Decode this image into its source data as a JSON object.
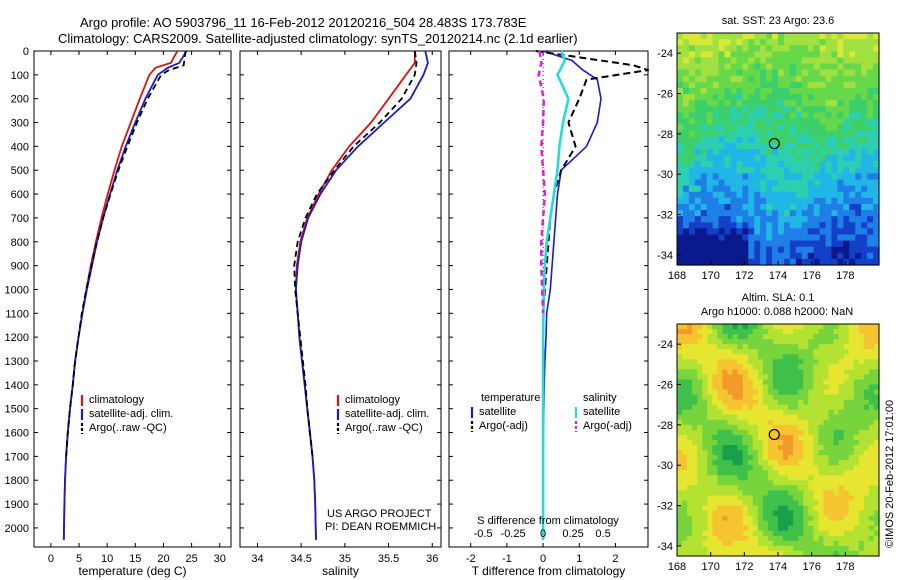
{
  "header": {
    "line1": "Argo profile: AO 5903796_11 16-Feb-2012 20120216_504 28.483S 173.783E",
    "line2": "Climatology: CARS2009. Satellite-adjusted climatology: synTS_20120214.nc (2.1d earlier)"
  },
  "credit": "©IMOS 20-Feb-2012 17:01:00",
  "colors": {
    "climatology": "#dd1111",
    "satellite": "#1a1acc",
    "argo": "#000000",
    "sal_satellite": "#22dddd",
    "sal_argo": "#dd22dd"
  },
  "chart_data": [
    {
      "type": "line",
      "panel": "temperature",
      "xlabel": "temperature (deg C)",
      "ylabel": "",
      "xlim": [
        -3,
        32
      ],
      "ylim": [
        2080,
        0
      ],
      "xticks": [
        "0",
        "5",
        "10",
        "15",
        "20",
        "25",
        "30"
      ],
      "yticks": [
        "0",
        "100",
        "200",
        "300",
        "400",
        "500",
        "600",
        "700",
        "800",
        "900",
        "1000",
        "1100",
        "1200",
        "1300",
        "1400",
        "1500",
        "1600",
        "1700",
        "1800",
        "1900",
        "2000"
      ],
      "legend": [
        "climatology",
        "satellite-adj. clim.",
        "Argo(..raw -QC)"
      ],
      "series": [
        {
          "name": "climatology",
          "x": [
            22.5,
            22.0,
            21.3,
            18.6,
            17.5,
            15.8,
            14.2,
            12.6,
            11.3,
            10.1,
            9.0,
            8.0,
            7.1,
            6.3,
            5.6,
            4.9,
            4.3,
            3.9,
            3.4,
            3.0,
            2.7,
            2.5,
            2.4,
            2.3
          ],
          "y": [
            0,
            20,
            50,
            70,
            100,
            200,
            300,
            400,
            500,
            600,
            700,
            800,
            900,
            1000,
            1100,
            1200,
            1300,
            1400,
            1500,
            1600,
            1700,
            1800,
            1900,
            2050
          ]
        },
        {
          "name": "satellite-adj. clim.",
          "x": [
            24.0,
            23.6,
            22.8,
            20.8,
            19.0,
            16.8,
            15.0,
            13.3,
            11.8,
            10.5,
            9.3,
            8.2,
            7.3,
            6.4,
            5.6,
            4.9,
            4.3,
            3.9,
            3.4,
            3.0,
            2.7,
            2.5,
            2.4,
            2.3
          ],
          "y": [
            0,
            20,
            50,
            70,
            100,
            200,
            300,
            400,
            500,
            600,
            700,
            800,
            900,
            1000,
            1100,
            1200,
            1300,
            1400,
            1500,
            1600,
            1700,
            1800,
            1900,
            2050
          ]
        },
        {
          "name": "Argo(..raw -QC)",
          "x": [
            24.0,
            23.8,
            23.6,
            21.0,
            19.6,
            17.2,
            15.3,
            13.6,
            12.0,
            10.6,
            9.3,
            8.2,
            7.2,
            6.3,
            5.5,
            4.9,
            4.3,
            3.9,
            3.4,
            3.0,
            2.7
          ],
          "y": [
            0,
            20,
            60,
            80,
            100,
            200,
            300,
            400,
            500,
            600,
            700,
            800,
            900,
            1000,
            1100,
            1200,
            1300,
            1400,
            1500,
            1600,
            1700
          ]
        }
      ]
    },
    {
      "type": "line",
      "panel": "salinity",
      "xlabel": "salinity",
      "ylabel": "",
      "xlim": [
        33.8,
        36.1
      ],
      "ylim": [
        2080,
        0
      ],
      "xticks": [
        "34",
        "34.5",
        "35",
        "35.5",
        "36"
      ],
      "legend": [
        "climatology",
        "satellite-adj. clim.",
        "Argo(..raw -QC)"
      ],
      "annotation": [
        "US ARGO PROJECT",
        "PI: DEAN ROEMMICH"
      ],
      "series": [
        {
          "name": "climatology",
          "x": [
            35.8,
            35.8,
            35.7,
            35.5,
            35.3,
            35.05,
            34.85,
            34.7,
            34.57,
            34.49,
            34.45,
            34.44,
            34.46,
            34.48,
            34.51,
            34.54,
            34.57,
            34.6,
            34.63,
            34.65,
            34.66,
            34.67
          ],
          "y": [
            0,
            50,
            100,
            200,
            300,
            400,
            500,
            600,
            700,
            800,
            900,
            1000,
            1100,
            1200,
            1300,
            1400,
            1500,
            1600,
            1700,
            1800,
            1900,
            2050
          ]
        },
        {
          "name": "satellite-adj. clim.",
          "x": [
            35.92,
            35.95,
            35.9,
            35.75,
            35.45,
            35.15,
            34.9,
            34.72,
            34.58,
            34.5,
            34.46,
            34.44,
            34.46,
            34.48,
            34.51,
            34.54,
            34.57,
            34.6,
            34.63,
            34.65,
            34.66,
            34.67
          ],
          "y": [
            0,
            50,
            100,
            200,
            300,
            400,
            500,
            600,
            700,
            800,
            900,
            1000,
            1100,
            1200,
            1300,
            1400,
            1500,
            1600,
            1700,
            1800,
            1900,
            2050
          ]
        },
        {
          "name": "Argo(..raw -QC)",
          "x": [
            35.8,
            35.82,
            35.8,
            35.65,
            35.4,
            35.1,
            34.88,
            34.68,
            34.55,
            34.46,
            34.42,
            34.43,
            34.46,
            34.49,
            34.52,
            34.55,
            34.57,
            34.6,
            34.63
          ],
          "y": [
            0,
            50,
            100,
            200,
            300,
            400,
            500,
            600,
            700,
            800,
            900,
            1000,
            1100,
            1200,
            1300,
            1400,
            1500,
            1600,
            1700
          ]
        }
      ]
    },
    {
      "type": "line",
      "panel": "difference",
      "xlabel": "T difference from climatology",
      "xlabel2": "S difference from climatology",
      "xlim": [
        -2.6,
        2.9
      ],
      "ylim": [
        2080,
        0
      ],
      "xticks": [
        "-2",
        "-1",
        "0",
        "1",
        "2"
      ],
      "xticks2": [
        "-0.5",
        "-0.25",
        "0",
        "0.25",
        "0.5"
      ],
      "legend_headers": [
        "temperature",
        "salinity"
      ],
      "legend": [
        "satellite",
        "Argo(-adj)",
        "satellite",
        "Argo(-adj)"
      ],
      "series": [
        {
          "name": "temperature satellite",
          "x": [
            0.0,
            0.8,
            1.1,
            1.5,
            1.6,
            1.5,
            1.2,
            0.5,
            0.4,
            0.35,
            0.3,
            0.25,
            0.2,
            0.1,
            0.08,
            0.05,
            0.03,
            0.02,
            0.0,
            0.0
          ],
          "y": [
            0,
            40,
            80,
            120,
            200,
            300,
            400,
            500,
            600,
            700,
            800,
            900,
            1000,
            1100,
            1200,
            1300,
            1400,
            1500,
            1700,
            2050
          ]
        },
        {
          "name": "temperature Argo(-adj)",
          "x": [
            -0.2,
            2.5,
            2.9,
            1.2,
            1.0,
            0.7,
            0.9,
            0.5,
            0.3,
            0.2,
            0.15,
            0.1,
            0.05,
            0.0
          ],
          "y": [
            0,
            60,
            80,
            120,
            200,
            300,
            400,
            500,
            600,
            700,
            800,
            900,
            1000,
            1100
          ]
        },
        {
          "name": "salinity satellite",
          "x": [
            0.5,
            0.6,
            0.4,
            0.7,
            0.55,
            0.45,
            0.4,
            0.3,
            0.2,
            0.1,
            0.05,
            0.02,
            0.0,
            0.0
          ],
          "y": [
            0,
            40,
            100,
            200,
            300,
            400,
            500,
            600,
            700,
            800,
            900,
            1000,
            1200,
            2050
          ]
        },
        {
          "name": "salinity Argo(-adj)",
          "x": [
            -0.1,
            -0.05,
            -0.12,
            0.02,
            0.0,
            -0.05,
            0.0,
            0.05,
            0.0,
            -0.05,
            -0.05,
            -0.02,
            0.0
          ],
          "y": [
            0,
            50,
            100,
            200,
            300,
            400,
            500,
            600,
            700,
            800,
            900,
            1000,
            1100
          ]
        }
      ]
    },
    {
      "type": "heatmap",
      "panel": "sst_map",
      "title": "sat. SST: 23 Argo: 23.6",
      "xlim": [
        168,
        180
      ],
      "ylim": [
        -34.5,
        -23
      ],
      "xticks": [
        "168",
        "170",
        "172",
        "174",
        "176",
        "178"
      ],
      "yticks": [
        "-24",
        "-26",
        "-28",
        "-30",
        "-32",
        "-34"
      ],
      "marker": {
        "lon": 173.78,
        "lat": -28.48
      }
    },
    {
      "type": "heatmap",
      "panel": "sla_map",
      "title": "Altim. SLA: 0.1",
      "subtitle": "Argo h1000: 0.088 h2000: NaN",
      "xlim": [
        168,
        180
      ],
      "ylim": [
        -34.5,
        -23
      ],
      "xticks": [
        "168",
        "170",
        "172",
        "174",
        "176",
        "178"
      ],
      "yticks": [
        "-24",
        "-26",
        "-28",
        "-30",
        "-32",
        "-34"
      ],
      "marker": {
        "lon": 173.78,
        "lat": -28.48
      }
    }
  ]
}
